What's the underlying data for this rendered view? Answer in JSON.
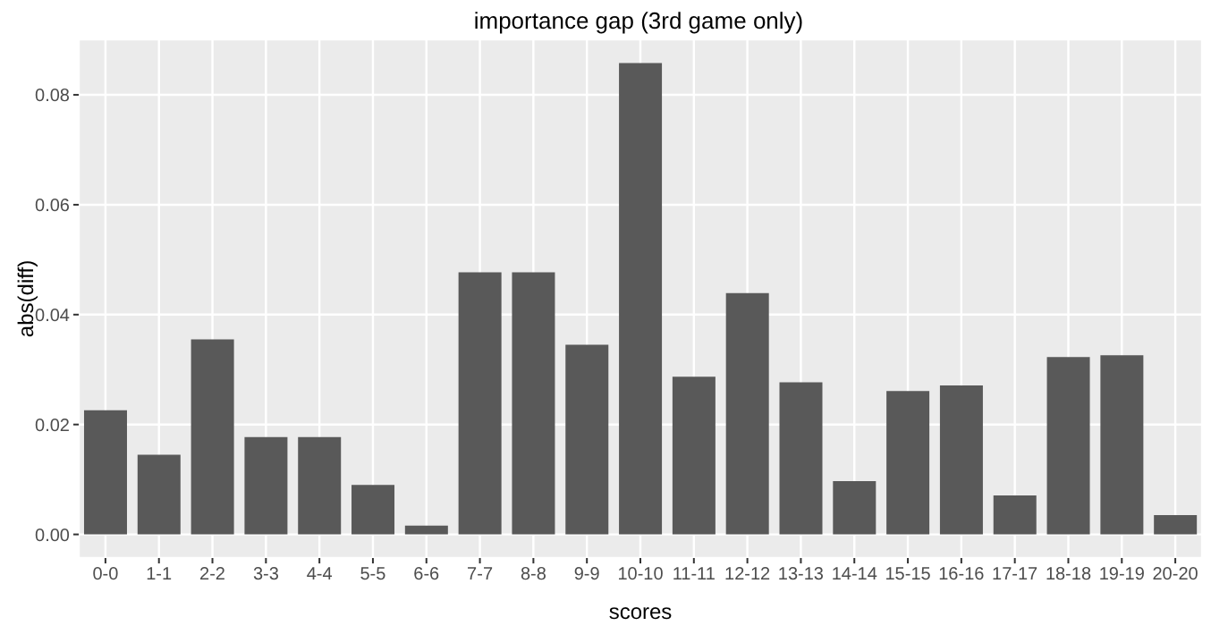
{
  "chart_data": {
    "type": "bar",
    "title": "importance gap (3rd game only)",
    "xlabel": "scores",
    "ylabel": "abs(diff)",
    "categories": [
      "0-0",
      "1-1",
      "2-2",
      "3-3",
      "4-4",
      "5-5",
      "6-6",
      "7-7",
      "8-8",
      "9-9",
      "10-10",
      "11-11",
      "12-12",
      "13-13",
      "14-14",
      "15-15",
      "16-16",
      "17-17",
      "18-18",
      "19-19",
      "20-20"
    ],
    "values": [
      0.0226,
      0.0145,
      0.0355,
      0.0177,
      0.0177,
      0.009,
      0.0016,
      0.0477,
      0.0477,
      0.0345,
      0.0858,
      0.0287,
      0.0439,
      0.0277,
      0.0097,
      0.0261,
      0.0271,
      0.0071,
      0.0323,
      0.0326,
      0.0035
    ],
    "color": "#595959",
    "ylim": [
      -0.0043,
      0.0901
    ],
    "yticks": [
      {
        "value": 0,
        "label": "0.00"
      },
      {
        "value": 0.02,
        "label": "0.02"
      },
      {
        "value": 0.04,
        "label": "0.04"
      },
      {
        "value": 0.06,
        "label": "0.06"
      },
      {
        "value": 0.08,
        "label": "0.08"
      }
    ],
    "grid": true
  }
}
